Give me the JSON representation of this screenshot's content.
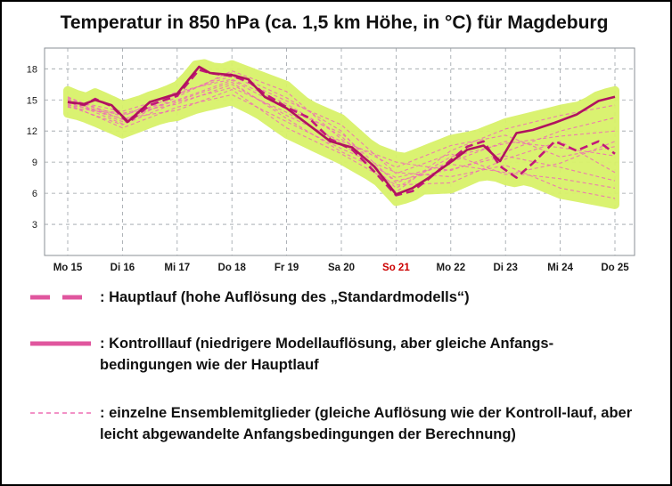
{
  "chart_data": {
    "type": "line",
    "title": "Temperatur in 850 hPa (ca. 1,5 km Höhe, in °C) für Magdeburg",
    "x_tick_labels": [
      "Mo 15",
      "Di 16",
      "Mi 17",
      "Do 18",
      "Fr 19",
      "Sa 20",
      "So 21",
      "Mo 22",
      "Di 23",
      "Mi 24",
      "Do 25"
    ],
    "x_tick_colors": [
      "#1a1a1a",
      "#1a1a1a",
      "#1a1a1a",
      "#1a1a1a",
      "#1a1a1a",
      "#1a1a1a",
      "#cc0000",
      "#1a1a1a",
      "#1a1a1a",
      "#1a1a1a",
      "#1a1a1a"
    ],
    "xlim": [
      0,
      10
    ],
    "ylim": [
      0,
      20
    ],
    "y_ticks": [
      3,
      6,
      9,
      12,
      15,
      18
    ],
    "grid": true,
    "series": [
      {
        "name": "Hauptlauf",
        "style": "dashed-thick",
        "color": "#c2187a",
        "x": [
          0,
          0.3,
          0.5,
          0.8,
          1.1,
          1.5,
          2.0,
          2.4,
          2.6,
          3.0,
          3.3,
          3.6,
          4.0,
          4.4,
          4.8,
          5.2,
          5.6,
          6.0,
          6.3,
          6.6,
          7.0,
          7.3,
          7.6,
          7.9,
          8.2,
          8.5,
          8.9,
          9.3,
          9.7,
          10.0
        ],
        "values": [
          14.8,
          14.5,
          15.1,
          14.4,
          12.8,
          14.5,
          15.4,
          17.9,
          17.6,
          17.3,
          16.8,
          15.6,
          14.3,
          13.3,
          11.2,
          10.2,
          8.1,
          5.8,
          6.2,
          7.4,
          9.2,
          10.5,
          11.0,
          8.6,
          7.5,
          8.9,
          11.0,
          10.1,
          11.0,
          9.8
        ]
      },
      {
        "name": "Kontrolllauf",
        "style": "solid-thick",
        "color": "#b0125f",
        "x": [
          0,
          0.3,
          0.5,
          0.8,
          1.1,
          1.5,
          2.0,
          2.4,
          2.6,
          3.0,
          3.3,
          3.6,
          4.0,
          4.4,
          4.8,
          5.2,
          5.6,
          6.0,
          6.3,
          6.6,
          7.0,
          7.3,
          7.6,
          7.9,
          8.2,
          8.5,
          8.9,
          9.3,
          9.7,
          10.0
        ],
        "values": [
          14.8,
          14.6,
          15.0,
          14.5,
          12.9,
          14.8,
          15.6,
          18.2,
          17.6,
          17.4,
          17.0,
          15.3,
          14.2,
          12.6,
          11.0,
          10.4,
          8.6,
          5.9,
          6.5,
          7.5,
          9.0,
          10.2,
          10.6,
          9.1,
          11.8,
          12.1,
          12.8,
          13.6,
          14.9,
          15.3
        ]
      }
    ],
    "ensemble_members": [
      {
        "x": [
          0,
          1,
          2,
          3,
          4,
          5,
          6,
          7,
          8,
          9,
          10
        ],
        "values": [
          15.2,
          13.4,
          15.8,
          17.0,
          14.6,
          11.5,
          6.5,
          9.5,
          10.8,
          11.5,
          12.0
        ]
      },
      {
        "x": [
          0,
          1,
          2,
          3,
          4,
          5,
          6,
          7,
          8,
          9,
          10
        ],
        "values": [
          14.4,
          12.6,
          14.8,
          16.2,
          13.8,
          10.8,
          7.2,
          8.3,
          9.6,
          8.5,
          7.2
        ]
      },
      {
        "x": [
          0,
          1,
          2,
          3,
          4,
          5,
          6,
          7,
          8,
          9,
          10
        ],
        "values": [
          15.0,
          13.9,
          15.5,
          17.6,
          15.2,
          12.0,
          6.1,
          10.1,
          12.2,
          13.5,
          14.5
        ]
      },
      {
        "x": [
          0,
          1,
          2,
          3,
          4,
          5,
          6,
          7,
          8,
          9,
          10
        ],
        "values": [
          14.6,
          12.3,
          14.3,
          15.5,
          12.9,
          10.3,
          8.0,
          7.6,
          8.7,
          6.5,
          5.5
        ]
      },
      {
        "x": [
          0,
          1,
          2,
          3,
          4,
          5,
          6,
          7,
          8,
          9,
          10
        ],
        "values": [
          15.3,
          13.1,
          15.0,
          16.9,
          14.1,
          11.8,
          7.0,
          9.0,
          11.0,
          10.4,
          9.6
        ]
      },
      {
        "x": [
          0,
          1,
          2,
          3,
          4,
          5,
          6,
          7,
          8,
          9,
          10
        ],
        "values": [
          14.3,
          13.6,
          14.6,
          16.5,
          13.5,
          11.0,
          9.0,
          8.2,
          10.0,
          12.0,
          13.3
        ]
      },
      {
        "x": [
          0,
          1,
          2,
          3,
          4,
          5,
          6,
          7,
          8,
          9,
          10
        ],
        "values": [
          15.1,
          12.9,
          15.6,
          17.3,
          14.9,
          12.6,
          7.9,
          9.8,
          7.8,
          8.9,
          11.0
        ]
      },
      {
        "x": [
          0,
          1,
          2,
          3,
          4,
          5,
          6,
          7,
          8,
          9,
          10
        ],
        "values": [
          14.7,
          13.2,
          14.0,
          16.0,
          12.3,
          9.8,
          6.8,
          7.0,
          9.3,
          11.0,
          8.0
        ]
      },
      {
        "x": [
          0,
          1,
          2,
          3,
          4,
          5,
          6,
          7,
          8,
          9,
          10
        ],
        "values": [
          14.9,
          12.7,
          15.3,
          17.8,
          15.8,
          11.2,
          8.5,
          10.6,
          11.6,
          9.5,
          10.5
        ]
      },
      {
        "x": [
          0,
          1,
          2,
          3,
          4,
          5,
          6,
          7,
          8,
          9,
          10
        ],
        "values": [
          14.5,
          13.7,
          14.9,
          16.7,
          13.2,
          10.0,
          7.5,
          8.8,
          8.0,
          7.4,
          6.5
        ]
      }
    ],
    "legend": {
      "placement": "below-chart",
      "entries": [
        {
          "style": "dashed-thick",
          "text": ": Hauptlauf  (hohe Auflösung  des „Standardmodells“)"
        },
        {
          "style": "solid-thick",
          "text": ": Kontrolllauf  (niedrigere Modellauflösung,  aber gleiche Anfangs-bedingungen wie der Hauptlauf"
        },
        {
          "style": "dashed-thin",
          "text": ": einzelne Ensemblemitglieder  (gleiche Auflösung  wie der Kontroll-lauf, aber leicht abgewandelte Anfangsbedingungen  der Berechnung)"
        }
      ]
    },
    "colors": {
      "spread_band": "#d9f26a",
      "members": "#ee6fb4",
      "axis_text": "#1a1a1a",
      "grid": "#9aa0a6",
      "weekend_tick": "#cc0000"
    }
  }
}
